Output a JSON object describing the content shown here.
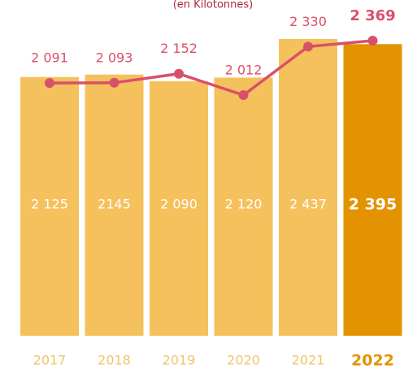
{
  "chart_data": {
    "type": "bar",
    "subtitle": "(en Kilotonnes)",
    "categories": [
      "2017",
      "2018",
      "2019",
      "2020",
      "2021",
      "2022"
    ],
    "bars": {
      "values": [
        2125,
        2145,
        2090,
        2120,
        2437,
        2395
      ],
      "value_labels": [
        "2 125",
        "2145",
        "2 090",
        "2 120",
        "2 437",
        "2 395"
      ],
      "colors": [
        "#f5c15d",
        "#f5c15d",
        "#f5c15d",
        "#f5c15d",
        "#f5c15d",
        "#e39300"
      ]
    },
    "line": {
      "values": [
        2091,
        2093,
        2152,
        2012,
        2330,
        2369
      ],
      "value_labels": [
        "2 091",
        "2 093",
        "2 152",
        "2 012",
        "2 330",
        "2 369"
      ],
      "color": "#d9506a"
    }
  }
}
